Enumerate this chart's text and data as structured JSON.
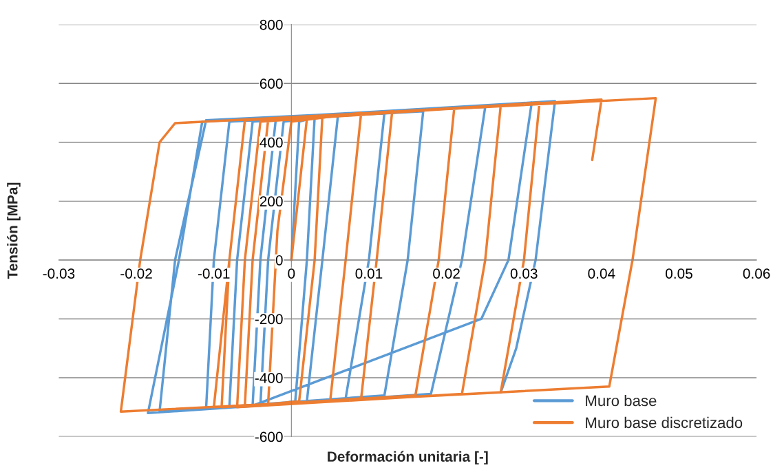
{
  "chart_data": {
    "type": "line",
    "xlabel": "Deformación unitaria [-]",
    "ylabel": "Tensión [MPa]",
    "xlim": [
      -0.03,
      0.06
    ],
    "xticks": [
      -0.03,
      -0.02,
      -0.01,
      0,
      0.01,
      0.02,
      0.03,
      0.04,
      0.05,
      0.06
    ],
    "ylim": [
      -600,
      800
    ],
    "yticks": [
      -600,
      -400,
      -200,
      0,
      200,
      400,
      600,
      800
    ],
    "grid": "y",
    "legend": "bottom right",
    "marker": "none",
    "line_style": "solid",
    "series": [
      {
        "name": "Muro base",
        "color": "#5b9bd5",
        "x": [
          0,
          0.001,
          0.003,
          0.002,
          0.0005,
          -0.004,
          -0.003,
          -0.001,
          0.006,
          0.004,
          0.002,
          -0.008,
          -0.007,
          -0.005,
          0.012,
          0.01,
          0.007,
          -0.011,
          -0.01,
          -0.008,
          0.017,
          0.015,
          0.012,
          -0.017,
          -0.015,
          -0.011,
          0.025,
          0.022,
          0.018,
          -0.0185,
          -0.0145,
          -0.0115,
          0.031,
          0.028,
          0.0245,
          -0.005,
          -0.004,
          -0.002,
          0.034,
          0.0315,
          0.029,
          0.027
        ],
        "values": [
          0,
          470,
          485,
          0,
          -480,
          -495,
          0,
          470,
          490,
          0,
          -480,
          -500,
          0,
          470,
          500,
          0,
          -470,
          -505,
          0,
          470,
          505,
          0,
          -460,
          -515,
          0,
          475,
          520,
          0,
          -455,
          -520,
          0,
          470,
          535,
          0,
          -200,
          -495,
          0,
          480,
          540,
          0,
          -300,
          -450
        ]
      },
      {
        "name": "Muro base discretizado",
        "color": "#ed7d31",
        "x": [
          0,
          0.002,
          0.004,
          0.003,
          0.001,
          -0.003,
          -0.0018,
          0,
          0.009,
          0.007,
          0.005,
          -0.006,
          -0.005,
          -0.003,
          0.013,
          0.011,
          0.009,
          -0.007,
          -0.006,
          -0.004,
          0.021,
          0.019,
          0.016,
          -0.009,
          -0.008,
          -0.006,
          0.027,
          0.025,
          0.022,
          -0.007,
          -0.006,
          -0.004,
          0.032,
          0.03,
          0.027,
          -0.022,
          -0.0195,
          -0.017,
          -0.015,
          0.047,
          0.044,
          0.041,
          -0.01,
          -0.008,
          -0.006,
          0.04,
          0.0388
        ],
        "values": [
          0,
          480,
          490,
          0,
          -480,
          -490,
          100,
          470,
          500,
          0,
          -480,
          -495,
          0,
          475,
          505,
          0,
          -470,
          -500,
          0,
          470,
          515,
          0,
          -460,
          -500,
          0,
          475,
          525,
          0,
          -455,
          -500,
          0,
          470,
          535,
          0,
          -450,
          -515,
          0,
          400,
          465,
          550,
          0,
          -430,
          -500,
          0,
          475,
          545,
          340
        ]
      }
    ]
  }
}
